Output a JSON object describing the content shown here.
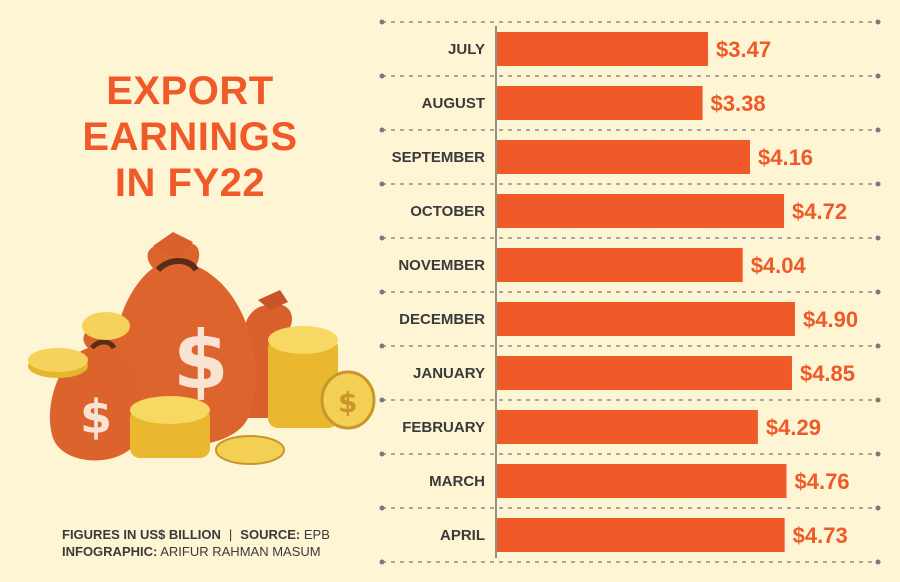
{
  "title_lines": [
    "EXPORT",
    "EARNINGS",
    "IN FY22"
  ],
  "footer": {
    "line1_label": "FIGURES IN US$ BILLION",
    "separator": "|",
    "source_label": "SOURCE:",
    "source_value": "EPB",
    "credit_label": "INFOGRAPHIC:",
    "credit_value": "ARIFUR RAHMAN MASUM"
  },
  "colors": {
    "background": "#fdf5d4",
    "accent": "#ef5a28",
    "bar": "#ef5a28",
    "label_text": "#3a3a3a",
    "grid_dots": "#7a7a7a"
  },
  "chart_data": {
    "type": "bar",
    "orientation": "horizontal",
    "categories": [
      "JULY",
      "AUGUST",
      "SEPTEMBER",
      "OCTOBER",
      "NOVEMBER",
      "DECEMBER",
      "JANUARY",
      "FEBRUARY",
      "MARCH",
      "APRIL"
    ],
    "values": [
      3.47,
      3.38,
      4.16,
      4.72,
      4.04,
      4.9,
      4.85,
      4.29,
      4.76,
      4.73
    ],
    "value_labels": [
      "$3.47",
      "$3.38",
      "$4.16",
      "$4.72",
      "$4.04",
      "$4.90",
      "$4.85",
      "$4.29",
      "$4.76",
      "$4.73"
    ],
    "xlim": [
      0,
      5.8
    ],
    "grid": "dotted row separators"
  }
}
